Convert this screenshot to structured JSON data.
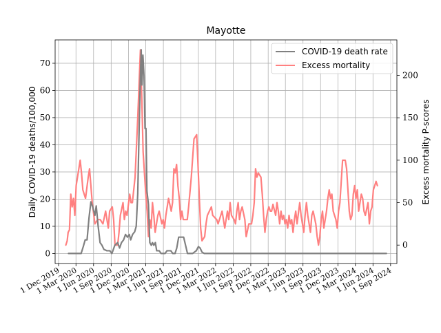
{
  "chart_data": {
    "type": "line",
    "title": "Mayotte",
    "ylabel_left": "Daily COVID-19 deaths/100,000",
    "ylabel_right": "Excess mortality P-scores",
    "y_left_lim": [
      -3.7,
      78.6
    ],
    "y_left_ticks": [
      0,
      10,
      20,
      30,
      40,
      50,
      60,
      70
    ],
    "y_right_lim": [
      -21.7,
      241.7
    ],
    "y_right_ticks": [
      0,
      50,
      100,
      150,
      200
    ],
    "x_lim": [
      "2019-11-13",
      "2024-10-04"
    ],
    "x_ticks": [
      "2019-12-01",
      "2020-03-01",
      "2020-06-01",
      "2020-09-01",
      "2020-12-01",
      "2021-03-01",
      "2021-06-01",
      "2021-09-01",
      "2021-12-01",
      "2022-03-01",
      "2022-06-01",
      "2022-09-01",
      "2022-12-01",
      "2023-03-01",
      "2023-06-01",
      "2023-09-01",
      "2023-12-01",
      "2024-03-01",
      "2024-06-01",
      "2024-09-01"
    ],
    "x_tick_labels": [
      "1 Dec 2019",
      "1 Mar 2020",
      "1 Jun 2020",
      "1 Sep 2020",
      "1 Dec 2020",
      "1 Mar 2021",
      "1 Jun 2021",
      "1 Sep 2021",
      "1 Dec 2021",
      "1 Mar 2022",
      "1 Jun 2022",
      "1 Sep 2022",
      "1 Dec 2022",
      "1 Mar 2023",
      "1 Jun 2023",
      "1 Sep 2023",
      "1 Dec 2023",
      "1 Mar 2024",
      "1 Jun 2024",
      "1 Sep 2024"
    ],
    "grid": true,
    "legend_position": "top-right",
    "series": [
      {
        "name": "COVID-19 death rate",
        "color": "#808080",
        "axis": "left",
        "points": [
          [
            "2020-01-22",
            0
          ],
          [
            "2020-03-28",
            0
          ],
          [
            "2020-04-08",
            2.5
          ],
          [
            "2020-04-18",
            5
          ],
          [
            "2020-04-28",
            5
          ],
          [
            "2020-05-08",
            13
          ],
          [
            "2020-05-18",
            19
          ],
          [
            "2020-05-28",
            17
          ],
          [
            "2020-06-08",
            14
          ],
          [
            "2020-06-15",
            17.5
          ],
          [
            "2020-06-25",
            10
          ],
          [
            "2020-07-05",
            4
          ],
          [
            "2020-07-15",
            3
          ],
          [
            "2020-07-25",
            1.5
          ],
          [
            "2020-08-10",
            1
          ],
          [
            "2020-08-25",
            1
          ],
          [
            "2020-09-05",
            0
          ],
          [
            "2020-09-20",
            3
          ],
          [
            "2020-10-05",
            4
          ],
          [
            "2020-10-15",
            2
          ],
          [
            "2020-10-25",
            4
          ],
          [
            "2020-11-05",
            5
          ],
          [
            "2020-11-15",
            7
          ],
          [
            "2020-11-25",
            6
          ],
          [
            "2020-12-05",
            7
          ],
          [
            "2020-12-12",
            5
          ],
          [
            "2020-12-22",
            7
          ],
          [
            "2021-01-02",
            8
          ],
          [
            "2021-01-10",
            10
          ],
          [
            "2021-01-18",
            22
          ],
          [
            "2021-01-25",
            45
          ],
          [
            "2021-02-01",
            66
          ],
          [
            "2021-02-05",
            75
          ],
          [
            "2021-02-09",
            62
          ],
          [
            "2021-02-14",
            73
          ],
          [
            "2021-02-20",
            65
          ],
          [
            "2021-02-25",
            46
          ],
          [
            "2021-03-02",
            46
          ],
          [
            "2021-03-07",
            23
          ],
          [
            "2021-03-15",
            18
          ],
          [
            "2021-03-22",
            4
          ],
          [
            "2021-03-30",
            3
          ],
          [
            "2021-04-05",
            4
          ],
          [
            "2021-04-12",
            3
          ],
          [
            "2021-04-20",
            4
          ],
          [
            "2021-04-27",
            1
          ],
          [
            "2021-05-10",
            1
          ],
          [
            "2021-05-20",
            0
          ],
          [
            "2021-06-10",
            0
          ],
          [
            "2021-06-20",
            1
          ],
          [
            "2021-07-10",
            1
          ],
          [
            "2021-07-20",
            0
          ],
          [
            "2021-08-01",
            0
          ],
          [
            "2021-08-10",
            2
          ],
          [
            "2021-08-20",
            6
          ],
          [
            "2021-09-05",
            6
          ],
          [
            "2021-09-15",
            6
          ],
          [
            "2021-09-25",
            3
          ],
          [
            "2021-10-05",
            0
          ],
          [
            "2021-11-01",
            0
          ],
          [
            "2021-11-20",
            1
          ],
          [
            "2021-12-01",
            2.5
          ],
          [
            "2021-12-10",
            2
          ],
          [
            "2021-12-20",
            0.5
          ],
          [
            "2022-01-01",
            0
          ],
          [
            "2024-08-10",
            0
          ]
        ]
      },
      {
        "name": "Excess mortality",
        "color": "#ff8080",
        "axis": "right",
        "points": [
          [
            "2020-01-08",
            0
          ],
          [
            "2020-01-15",
            5
          ],
          [
            "2020-01-20",
            15
          ],
          [
            "2020-01-27",
            18
          ],
          [
            "2020-02-03",
            60
          ],
          [
            "2020-02-10",
            45
          ],
          [
            "2020-02-17",
            55
          ],
          [
            "2020-02-24",
            35
          ],
          [
            "2020-03-02",
            70
          ],
          [
            "2020-03-16",
            90
          ],
          [
            "2020-03-23",
            100
          ],
          [
            "2020-03-30",
            85
          ],
          [
            "2020-04-06",
            65
          ],
          [
            "2020-04-20",
            55
          ],
          [
            "2020-05-04",
            80
          ],
          [
            "2020-05-11",
            90
          ],
          [
            "2020-05-25",
            50
          ],
          [
            "2020-06-08",
            25
          ],
          [
            "2020-06-22",
            30
          ],
          [
            "2020-07-06",
            30
          ],
          [
            "2020-07-20",
            25
          ],
          [
            "2020-08-03",
            40
          ],
          [
            "2020-08-17",
            20
          ],
          [
            "2020-08-24",
            40
          ],
          [
            "2020-09-07",
            45
          ],
          [
            "2020-09-14",
            30
          ],
          [
            "2020-09-21",
            0
          ],
          [
            "2020-10-05",
            0
          ],
          [
            "2020-10-12",
            15
          ],
          [
            "2020-10-19",
            35
          ],
          [
            "2020-11-02",
            50
          ],
          [
            "2020-11-09",
            30
          ],
          [
            "2020-11-16",
            40
          ],
          [
            "2020-11-23",
            35
          ],
          [
            "2020-12-07",
            60
          ],
          [
            "2020-12-14",
            50
          ],
          [
            "2020-12-21",
            50
          ],
          [
            "2021-01-04",
            80
          ],
          [
            "2021-01-18",
            150
          ],
          [
            "2021-01-25",
            190
          ],
          [
            "2021-02-01",
            230
          ],
          [
            "2021-02-08",
            175
          ],
          [
            "2021-02-15",
            110
          ],
          [
            "2021-02-22",
            85
          ],
          [
            "2021-03-01",
            60
          ],
          [
            "2021-03-08",
            40
          ],
          [
            "2021-03-15",
            10
          ],
          [
            "2021-03-22",
            30
          ],
          [
            "2021-03-29",
            20
          ],
          [
            "2021-04-05",
            50
          ],
          [
            "2021-04-12",
            35
          ],
          [
            "2021-04-19",
            15
          ],
          [
            "2021-04-26",
            25
          ],
          [
            "2021-05-03",
            35
          ],
          [
            "2021-05-10",
            40
          ],
          [
            "2021-05-24",
            25
          ],
          [
            "2021-05-31",
            30
          ],
          [
            "2021-06-07",
            20
          ],
          [
            "2021-06-14",
            35
          ],
          [
            "2021-06-28",
            55
          ],
          [
            "2021-07-12",
            40
          ],
          [
            "2021-07-19",
            50
          ],
          [
            "2021-07-26",
            90
          ],
          [
            "2021-08-02",
            85
          ],
          [
            "2021-08-09",
            95
          ],
          [
            "2021-08-16",
            70
          ],
          [
            "2021-08-23",
            55
          ],
          [
            "2021-08-30",
            30
          ],
          [
            "2021-09-06",
            40
          ],
          [
            "2021-09-13",
            30
          ],
          [
            "2021-10-04",
            30
          ],
          [
            "2021-10-11",
            45
          ],
          [
            "2021-10-25",
            80
          ],
          [
            "2021-11-08",
            125
          ],
          [
            "2021-11-22",
            130
          ],
          [
            "2021-11-29",
            95
          ],
          [
            "2021-12-06",
            55
          ],
          [
            "2021-12-13",
            20
          ],
          [
            "2021-12-20",
            5
          ],
          [
            "2022-01-03",
            10
          ],
          [
            "2022-01-10",
            25
          ],
          [
            "2022-01-17",
            35
          ],
          [
            "2022-02-07",
            45
          ],
          [
            "2022-02-14",
            35
          ],
          [
            "2022-03-07",
            30
          ],
          [
            "2022-03-14",
            25
          ],
          [
            "2022-03-21",
            30
          ],
          [
            "2022-04-04",
            40
          ],
          [
            "2022-04-18",
            20
          ],
          [
            "2022-05-02",
            40
          ],
          [
            "2022-05-09",
            30
          ],
          [
            "2022-05-16",
            50
          ],
          [
            "2022-05-23",
            35
          ],
          [
            "2022-06-06",
            30
          ],
          [
            "2022-06-13",
            25
          ],
          [
            "2022-06-20",
            40
          ],
          [
            "2022-06-27",
            50
          ],
          [
            "2022-07-04",
            30
          ],
          [
            "2022-07-11",
            40
          ],
          [
            "2022-07-18",
            45
          ],
          [
            "2022-08-01",
            30
          ],
          [
            "2022-08-08",
            10
          ],
          [
            "2022-08-22",
            25
          ],
          [
            "2022-09-05",
            25
          ],
          [
            "2022-09-12",
            35
          ],
          [
            "2022-09-19",
            50
          ],
          [
            "2022-09-26",
            90
          ],
          [
            "2022-10-03",
            80
          ],
          [
            "2022-10-10",
            85
          ],
          [
            "2022-10-24",
            80
          ],
          [
            "2022-10-31",
            60
          ],
          [
            "2022-11-07",
            35
          ],
          [
            "2022-11-14",
            15
          ],
          [
            "2022-11-21",
            30
          ],
          [
            "2022-11-28",
            40
          ],
          [
            "2022-12-05",
            45
          ],
          [
            "2022-12-12",
            40
          ],
          [
            "2022-12-19",
            40
          ],
          [
            "2022-12-26",
            48
          ],
          [
            "2023-01-09",
            35
          ],
          [
            "2023-01-16",
            50
          ],
          [
            "2023-01-23",
            40
          ],
          [
            "2023-01-30",
            25
          ],
          [
            "2023-02-06",
            40
          ],
          [
            "2023-02-13",
            30
          ],
          [
            "2023-02-20",
            35
          ],
          [
            "2023-02-27",
            25
          ],
          [
            "2023-03-06",
            30
          ],
          [
            "2023-03-13",
            20
          ],
          [
            "2023-03-20",
            35
          ],
          [
            "2023-03-27",
            25
          ],
          [
            "2023-04-03",
            30
          ],
          [
            "2023-04-10",
            15
          ],
          [
            "2023-04-17",
            30
          ],
          [
            "2023-04-24",
            40
          ],
          [
            "2023-05-01",
            25
          ],
          [
            "2023-05-15",
            50
          ],
          [
            "2023-05-22",
            35
          ],
          [
            "2023-05-29",
            25
          ],
          [
            "2023-06-05",
            15
          ],
          [
            "2023-06-12",
            35
          ],
          [
            "2023-06-19",
            50
          ],
          [
            "2023-06-26",
            35
          ],
          [
            "2023-07-03",
            25
          ],
          [
            "2023-07-10",
            15
          ],
          [
            "2023-07-17",
            35
          ],
          [
            "2023-07-24",
            40
          ],
          [
            "2023-08-07",
            25
          ],
          [
            "2023-08-14",
            10
          ],
          [
            "2023-08-21",
            0
          ],
          [
            "2023-08-28",
            10
          ],
          [
            "2023-09-04",
            30
          ],
          [
            "2023-09-11",
            40
          ],
          [
            "2023-09-18",
            20
          ],
          [
            "2023-10-02",
            40
          ],
          [
            "2023-10-09",
            55
          ],
          [
            "2023-10-16",
            65
          ],
          [
            "2023-10-23",
            55
          ],
          [
            "2023-10-30",
            60
          ],
          [
            "2023-11-06",
            40
          ],
          [
            "2023-11-13",
            35
          ],
          [
            "2023-11-20",
            30
          ],
          [
            "2023-11-27",
            20
          ],
          [
            "2023-12-04",
            40
          ],
          [
            "2023-12-11",
            50
          ],
          [
            "2023-12-25",
            100
          ],
          [
            "2024-01-08",
            100
          ],
          [
            "2024-01-15",
            90
          ],
          [
            "2024-01-22",
            65
          ],
          [
            "2024-01-29",
            40
          ],
          [
            "2024-02-05",
            30
          ],
          [
            "2024-02-12",
            35
          ],
          [
            "2024-02-19",
            60
          ],
          [
            "2024-02-26",
            70
          ],
          [
            "2024-03-04",
            55
          ],
          [
            "2024-03-11",
            65
          ],
          [
            "2024-03-18",
            40
          ],
          [
            "2024-03-25",
            50
          ],
          [
            "2024-04-01",
            60
          ],
          [
            "2024-04-08",
            55
          ],
          [
            "2024-04-15",
            40
          ],
          [
            "2024-04-22",
            35
          ],
          [
            "2024-05-06",
            50
          ],
          [
            "2024-05-13",
            25
          ],
          [
            "2024-05-20",
            40
          ],
          [
            "2024-05-27",
            45
          ],
          [
            "2024-06-03",
            65
          ],
          [
            "2024-06-17",
            75
          ],
          [
            "2024-06-24",
            70
          ]
        ]
      }
    ]
  }
}
